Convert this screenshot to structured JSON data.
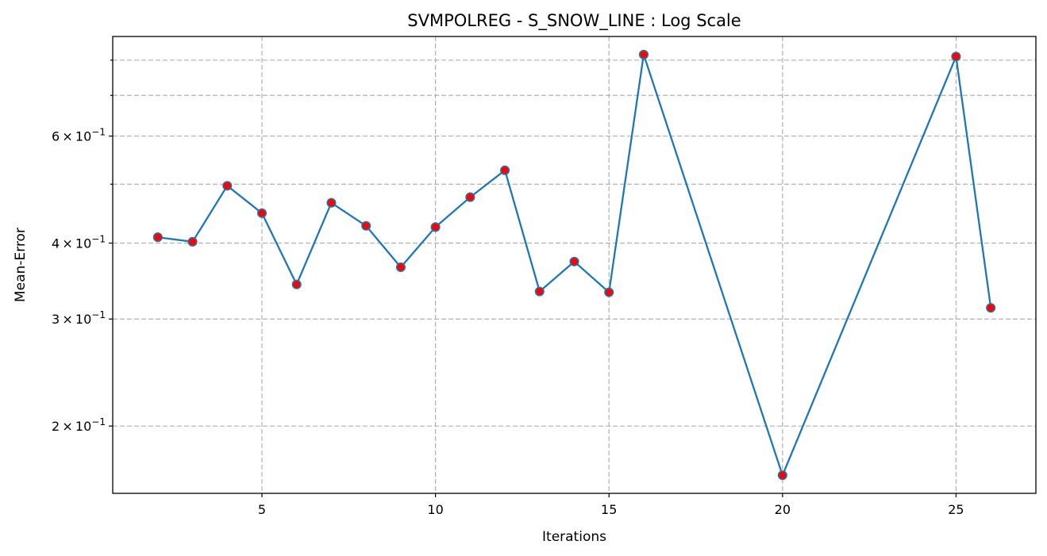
{
  "chart_data": {
    "type": "line",
    "title": "SVMPOLREG - S_SNOW_LINE : Log Scale",
    "xlabel": "Iterations",
    "ylabel": "Mean-Error",
    "yscale": "log",
    "grid": true,
    "xlim": [
      0.7,
      27.3
    ],
    "ylim": [
      0.155,
      0.875
    ],
    "x_ticks": [
      5,
      10,
      15,
      20,
      25
    ],
    "y_major_ticks": [
      {
        "value": 0.2,
        "mantissa": "2",
        "label": "2 × 10⁻¹"
      },
      {
        "value": 0.3,
        "mantissa": "3",
        "label": "3 × 10⁻¹"
      },
      {
        "value": 0.4,
        "mantissa": "4",
        "label": "4 × 10⁻¹"
      },
      {
        "value": 0.6,
        "mantissa": "6",
        "label": "6 × 10⁻¹"
      }
    ],
    "y_minor_ticks": [
      0.5,
      0.7,
      0.8
    ],
    "colors": {
      "line": "#1f77b4",
      "marker_face": "#ff0000",
      "marker_edge": "#1f77b4",
      "grid": "#b0b0b0"
    },
    "series": [
      {
        "x": [
          2,
          3,
          4,
          5,
          6,
          7,
          8,
          9,
          10,
          11,
          12,
          13,
          14,
          15,
          16,
          20,
          25,
          26
        ],
        "values": [
          0.409,
          0.402,
          0.497,
          0.448,
          0.342,
          0.466,
          0.427,
          0.365,
          0.425,
          0.476,
          0.527,
          0.333,
          0.373,
          0.332,
          0.817,
          0.166,
          0.811,
          0.313
        ]
      }
    ]
  }
}
